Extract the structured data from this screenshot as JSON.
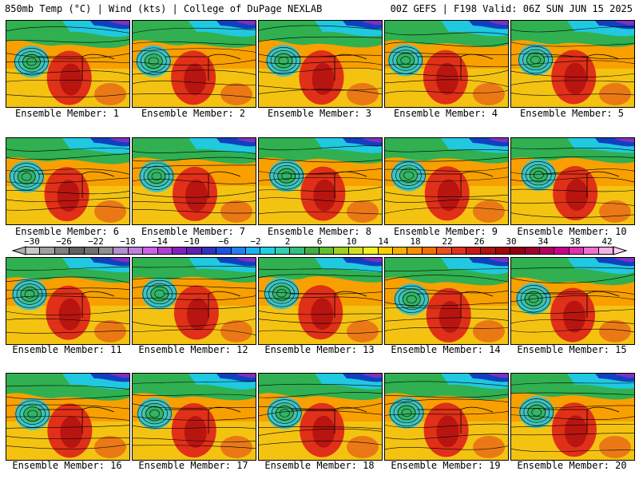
{
  "header": {
    "left": "850mb Temp (°C) | Wind (kts) | College of DuPage NEXLAB",
    "right": "00Z GEFS | F198 Valid: 06Z SUN JUN 15 2025"
  },
  "panels": [
    {
      "label": "Ensemble Member: 1"
    },
    {
      "label": "Ensemble Member: 2"
    },
    {
      "label": "Ensemble Member: 3"
    },
    {
      "label": "Ensemble Member: 4"
    },
    {
      "label": "Ensemble Member: 5"
    },
    {
      "label": "Ensemble Member: 6"
    },
    {
      "label": "Ensemble Member: 7"
    },
    {
      "label": "Ensemble Member: 8"
    },
    {
      "label": "Ensemble Member: 9"
    },
    {
      "label": "Ensemble Member: 10"
    },
    {
      "label": "Ensemble Member: 11"
    },
    {
      "label": "Ensemble Member: 12"
    },
    {
      "label": "Ensemble Member: 13"
    },
    {
      "label": "Ensemble Member: 14"
    },
    {
      "label": "Ensemble Member: 15"
    },
    {
      "label": "Ensemble Member: 16"
    },
    {
      "label": "Ensemble Member: 17"
    },
    {
      "label": "Ensemble Member: 18"
    },
    {
      "label": "Ensemble Member: 19"
    },
    {
      "label": "Ensemble Member: 20"
    }
  ],
  "colorbar": {
    "ticks": [
      "−30",
      "−26",
      "−22",
      "−18",
      "−14",
      "−10",
      "−6",
      "−2",
      "2",
      "6",
      "10",
      "14",
      "18",
      "22",
      "26",
      "30",
      "34",
      "38",
      "42"
    ],
    "colors": [
      "#c8c8c8",
      "#a0a0a0",
      "#808080",
      "#606060",
      "#707070",
      "#909090",
      "#b090d0",
      "#c080e0",
      "#d060e8",
      "#b040d0",
      "#8020c0",
      "#6020b0",
      "#3030c0",
      "#2050e0",
      "#2080f0",
      "#20b0f0",
      "#20d0e0",
      "#30d0b0",
      "#30c080",
      "#40b040",
      "#60c030",
      "#a0d020",
      "#d0e020",
      "#f0f020",
      "#f8d000",
      "#f8b000",
      "#f89000",
      "#f07000",
      "#e85020",
      "#e03020",
      "#c81818",
      "#b01010",
      "#a00808",
      "#900010",
      "#a00030",
      "#b00060",
      "#c80090",
      "#e030b0",
      "#f070d0",
      "#f8b0e8"
    ]
  },
  "palette": {
    "cold": "#1040c0",
    "cyan": "#20c8e0",
    "green": "#30b050",
    "yellow": "#f0e020",
    "orange": "#f8a000",
    "red": "#e03018",
    "darkred": "#b01010",
    "purple": "#8030c0"
  }
}
